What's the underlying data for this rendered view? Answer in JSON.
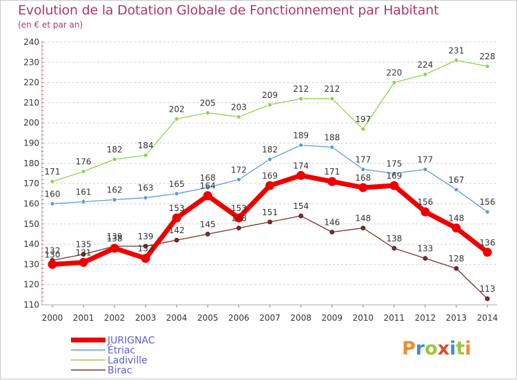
{
  "header": {
    "title": "Evolution de la Dotation Globale de Fonctionnement par Habitant",
    "subtitle": "(en € et par an)"
  },
  "logo": {
    "text": "Proxiti",
    "colors": [
      "#f28c28",
      "#3a8fd6",
      "#9bc53d",
      "#e04a2a",
      "#3a8fd6",
      "#9bc53d",
      "#f28c28"
    ]
  },
  "chart_data": {
    "type": "line",
    "title": "Evolution de la Dotation Globale de Fonctionnement par Habitant",
    "subtitle": "(en € et par an)",
    "xlabel": "",
    "ylabel": "",
    "x": [
      "2000",
      "2001",
      "2002",
      "2003",
      "2004",
      "2005",
      "2006",
      "2007",
      "2008",
      "2009",
      "2010",
      "2011",
      "2012",
      "2013",
      "2014"
    ],
    "ylim": [
      110,
      240
    ],
    "yticks": [
      110,
      120,
      130,
      140,
      150,
      160,
      170,
      180,
      190,
      200,
      210,
      220,
      230,
      240
    ],
    "grid": "horizontal-dashed",
    "legend_position": "bottom-left",
    "series": [
      {
        "name": "JURIGNAC",
        "color": "#ee0000",
        "values": [
          130,
          131,
          138,
          133,
          153,
          164,
          153,
          169,
          174,
          171,
          168,
          169,
          156,
          148,
          136
        ]
      },
      {
        "name": "Étriac",
        "color": "#5b9bd5",
        "values": [
          160,
          161,
          162,
          163,
          165,
          168,
          172,
          182,
          189,
          188,
          177,
          175,
          177,
          167,
          156
        ]
      },
      {
        "name": "Ladiville",
        "color": "#8fd14f",
        "values": [
          171,
          176,
          182,
          184,
          202,
          205,
          203,
          209,
          212,
          212,
          197,
          220,
          224,
          231,
          228
        ]
      },
      {
        "name": "Birac",
        "color": "#7a2e2e",
        "values": [
          132,
          135,
          139,
          139,
          142,
          145,
          148,
          151,
          154,
          146,
          148,
          138,
          133,
          128,
          113
        ]
      }
    ]
  }
}
